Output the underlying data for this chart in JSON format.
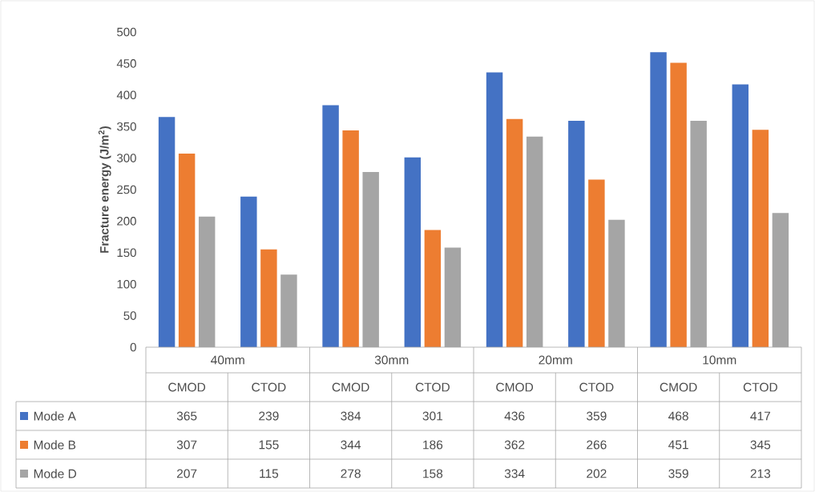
{
  "chart_data": {
    "type": "bar",
    "ylabel": "Fracture energy (J/m$^{2}$)",
    "categories": [
      "CMOD",
      "CTOD",
      "CMOD",
      "CTOD",
      "CMOD",
      "CTOD",
      "CMOD",
      "CTOD"
    ],
    "annotations": [
      "40mm",
      "30mm",
      "20mm",
      "10mm"
    ],
    "series": [
      {
        "name": "Mode A",
        "color": "#4472c4",
        "values": [
          365,
          239,
          384,
          301,
          436,
          359,
          468,
          417
        ]
      },
      {
        "name": "Mode B",
        "color": "#ed7d31",
        "values": [
          307,
          155,
          344,
          186,
          362,
          266,
          451,
          345
        ]
      },
      {
        "name": "Mode D",
        "color": "#a5a5a5",
        "values": [
          207,
          115,
          278,
          158,
          334,
          202,
          359,
          213
        ]
      }
    ],
    "ylim": [
      0,
      500
    ],
    "yticks": [
      0,
      50,
      100,
      150,
      200,
      250,
      300,
      350,
      400,
      450,
      500
    ],
    "data_labels": true,
    "legend": "bottom left",
    "grid": false
  }
}
